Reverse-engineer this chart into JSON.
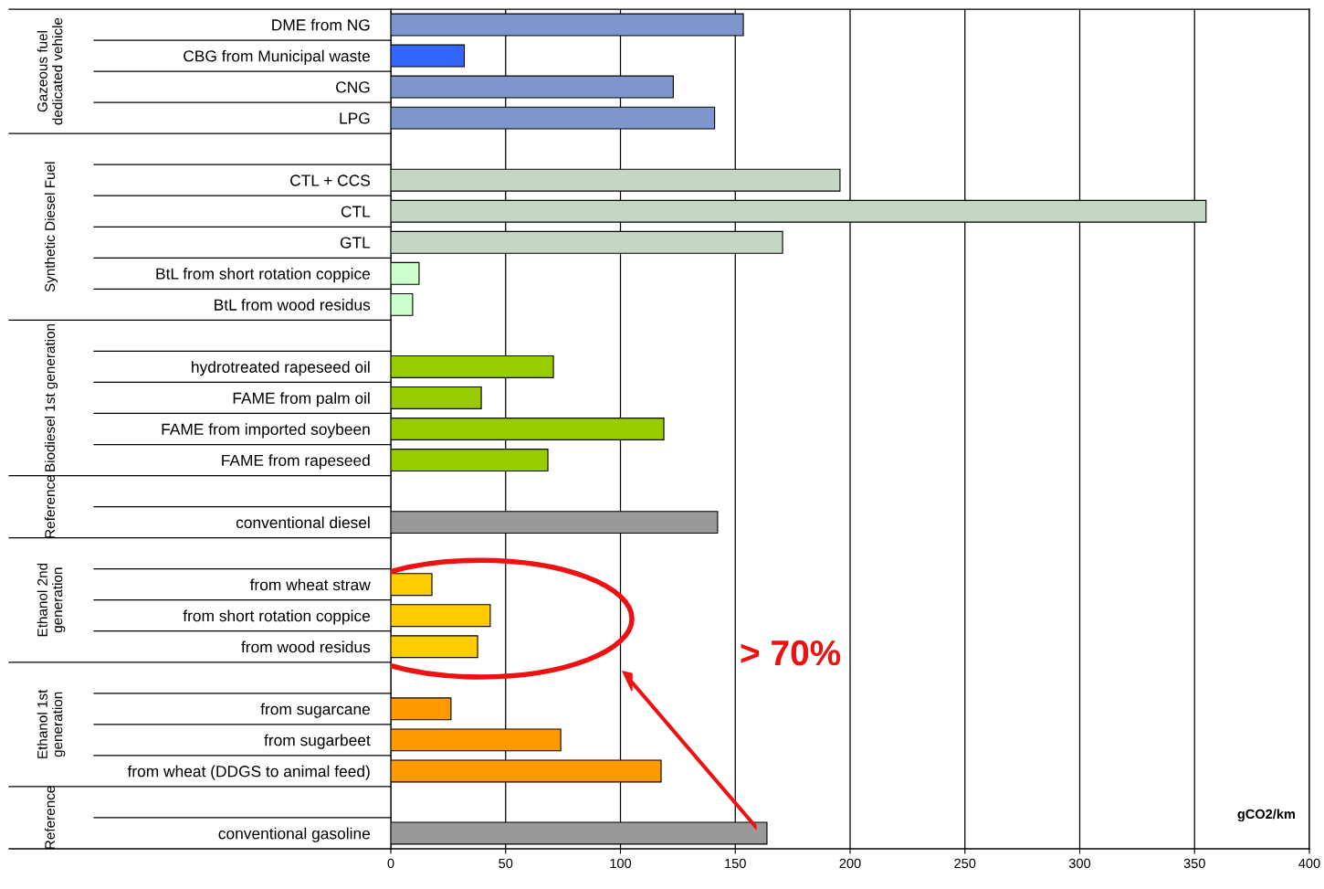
{
  "chart_data": {
    "type": "bar",
    "orientation": "horizontal",
    "xlabel": "gCO2/km",
    "categories": [
      "DME from NG",
      "CBG from Municipal waste",
      "CNG",
      "LPG",
      null,
      "CTL + CCS",
      "CTL",
      "GTL",
      "BtL from short rotation coppice",
      "BtL from wood residus",
      null,
      "hydrotreated rapeseed oil",
      "FAME from palm oil",
      "FAME from imported soybeen",
      "FAME from rapeseed",
      null,
      "conventional diesel",
      null,
      "from wheat straw",
      "from short rotation coppice",
      "from wood residus",
      null,
      "from sugarcane",
      "from sugarbeet",
      "from wheat (DDGS to animal feed)",
      null,
      "conventional gasoline"
    ],
    "values": [
      153.5,
      32,
      123,
      141,
      null,
      195.6,
      355,
      170.6,
      12.3,
      9.5,
      null,
      70.8,
      39.4,
      118.9,
      68.4,
      null,
      142.3,
      null,
      17.9,
      43.3,
      37.8,
      null,
      26.2,
      74,
      117.7,
      null,
      163.8
    ],
    "colors": [
      "#7f96cc",
      "#3366ff",
      "#7f96cc",
      "#7f96cc",
      null,
      "#c4d6c4",
      "#c4d6c4",
      "#c4d6c4",
      "#ccffcc",
      "#ccffcc",
      null,
      "#99cc00",
      "#99cc00",
      "#99cc00",
      "#99cc00",
      null,
      "#999999",
      null,
      "#ffcc00",
      "#ffcc00",
      "#ffcc00",
      null,
      "#ff9900",
      "#ff9900",
      "#ff9900",
      null,
      "#999999"
    ],
    "xlim": [
      0,
      400
    ],
    "xticks": [
      0,
      50,
      100,
      150,
      200,
      250,
      300,
      350,
      400
    ],
    "grid": "x",
    "annotations": [
      "Gazeous fuel dedicated vehicle",
      "Synthetic Diesel Fuel",
      "Biodiesel 1st generation",
      "Reference",
      "Ethanol 2nd generation",
      "Ethanol 1st generation",
      "Reference",
      "> 70%"
    ]
  }
}
